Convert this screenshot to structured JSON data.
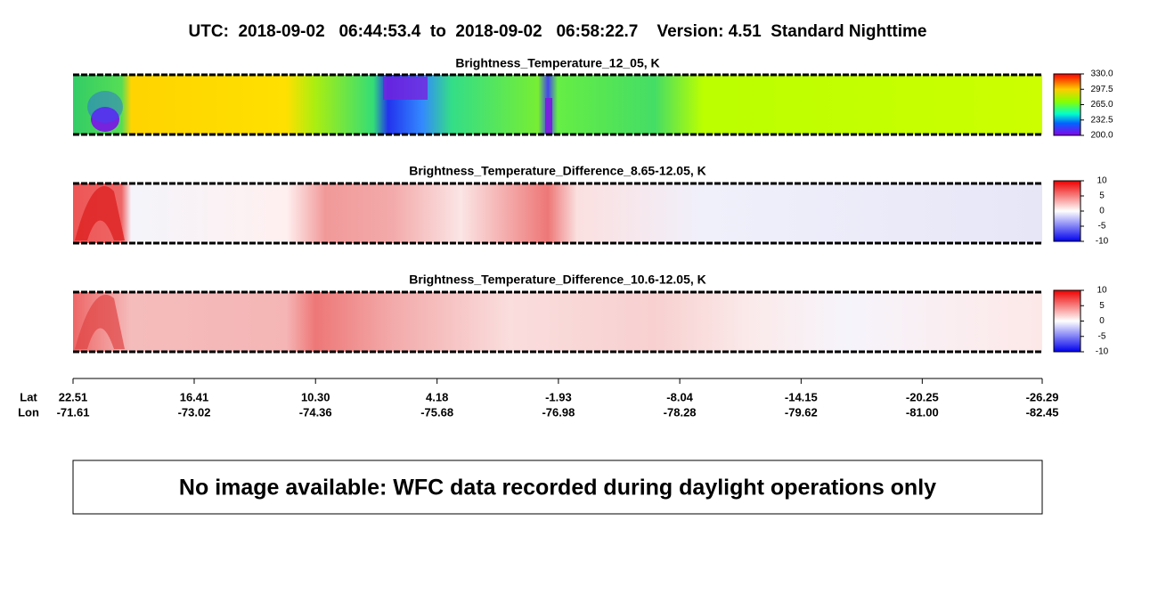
{
  "title": "UTC:  2018-09-02   06:44:53.4  to  2018-09-02   06:58:22.7    Version: 4.51  Standard Nighttime",
  "panels": [
    {
      "title": "Brightness_Temperature_12_05, K",
      "colorbar": {
        "lim": [
          200,
          330
        ],
        "ticks": [
          {
            "value": 330,
            "label": "330.0"
          },
          {
            "value": 297.5,
            "label": "297.5"
          },
          {
            "value": 265,
            "label": "265.0"
          },
          {
            "value": 232.5,
            "label": "232.5"
          },
          {
            "value": 200,
            "label": "200.0"
          }
        ]
      }
    },
    {
      "title": "Brightness_Temperature_Difference_8.65-12.05, K",
      "colorbar": {
        "lim": [
          -10,
          10
        ],
        "ticks": [
          10,
          5,
          0,
          -5,
          -10
        ]
      }
    },
    {
      "title": "Brightness_Temperature_Difference_10.6-12.05, K",
      "colorbar": {
        "lim": [
          -10,
          10
        ],
        "ticks": [
          10,
          5,
          0,
          -5,
          -10
        ]
      }
    }
  ],
  "x_axis": {
    "lat_label": "Lat",
    "lon_label": "Lon",
    "lim": [
      22.51,
      -26.29
    ],
    "lat": [
      22.51,
      16.41,
      {
        "value": 10.3,
        "label": "10.30"
      },
      4.18,
      -1.93,
      -8.04,
      -14.15,
      -20.25,
      -26.29
    ],
    "lon": [
      -71.61,
      -73.02,
      -74.36,
      -75.68,
      -76.98,
      -78.28,
      -79.62,
      {
        "value": -81,
        "label": "-81.00"
      },
      -82.45
    ]
  },
  "message": "No image available: WFC data recorded during daylight operations only"
}
